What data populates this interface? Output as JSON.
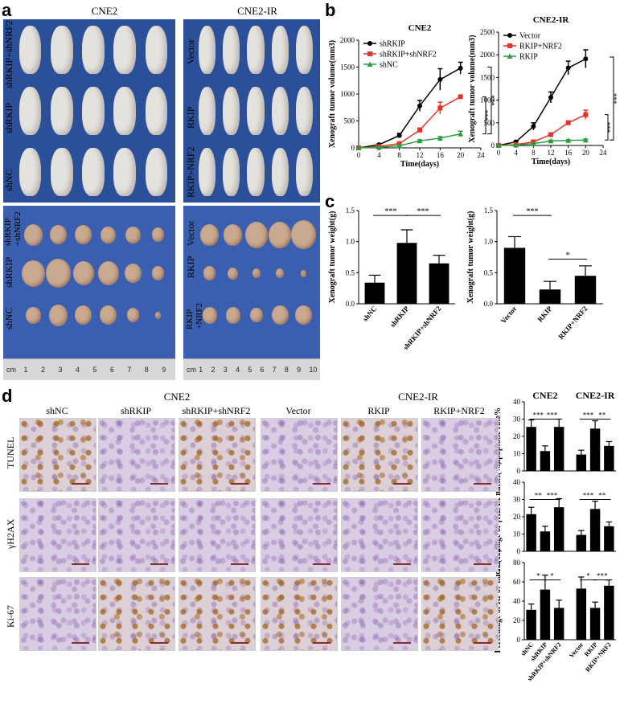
{
  "panels": {
    "a": {
      "label": "a",
      "left_title": "CNE2",
      "right_title": "CNE2-IR",
      "left_rows": [
        "shRKIP+shNRF2",
        "shRKIP",
        "shNC"
      ],
      "right_rows": [
        "Vector",
        "RKIP",
        "RKIP+NRF2"
      ],
      "left_tumor_rows": [
        "shRKIP\n+shNRF2",
        "shRKIP",
        "shNC"
      ],
      "right_tumor_rows": [
        "Vector",
        "RKIP",
        "RKIP\n+NRF2"
      ],
      "ruler_left": [
        "cm",
        "1",
        "2",
        "3",
        "4",
        "5",
        "6",
        "7",
        "8",
        "9"
      ],
      "ruler_right": [
        "cm",
        "1",
        "2",
        "3",
        "4",
        "5",
        "6",
        "7",
        "8",
        "9",
        "10"
      ]
    },
    "b": {
      "label": "b"
    },
    "c": {
      "label": "c"
    },
    "d": {
      "label": "d",
      "group1": "CNE2",
      "group2": "CNE2-IR",
      "columns": [
        "shNC",
        "shRKIP",
        "shRKIP+shNRF2",
        "Vector",
        "RKIP",
        "RKIP+NRF2"
      ],
      "rows": [
        "TUNEL",
        "γH2AX",
        "Ki-67"
      ]
    }
  },
  "chart_data": [
    {
      "id": "b-left",
      "type": "line",
      "title": "CNE2",
      "xlabel": "Time(days)",
      "ylabel": "Xenograft tumor volume(mm3)",
      "xlim": [
        0,
        24
      ],
      "ylim": [
        0,
        2000
      ],
      "xticks": [
        0,
        4,
        8,
        12,
        16,
        20,
        24
      ],
      "yticks": [
        0,
        500,
        1000,
        1500,
        2000
      ],
      "x": [
        0,
        4,
        8,
        12,
        16,
        20
      ],
      "series": [
        {
          "name": "shRKIP",
          "color": "#000000",
          "marker": "circle",
          "values": [
            0,
            60,
            230,
            780,
            1270,
            1480
          ],
          "errors": [
            0,
            15,
            40,
            100,
            200,
            110
          ]
        },
        {
          "name": "shRKIP+shNRF2",
          "color": "#e8332a",
          "marker": "square",
          "values": [
            0,
            25,
            80,
            330,
            740,
            950
          ],
          "errors": [
            0,
            10,
            20,
            40,
            110,
            30
          ]
        },
        {
          "name": "shNC",
          "color": "#2a9d3c",
          "marker": "triangle",
          "values": [
            0,
            10,
            40,
            130,
            180,
            260
          ],
          "errors": [
            0,
            5,
            10,
            20,
            30,
            50
          ]
        }
      ],
      "annotations": [
        "***",
        "***"
      ]
    },
    {
      "id": "b-right",
      "type": "line",
      "title": "CNE2-IR",
      "xlabel": "Time(days)",
      "ylabel": "Xenograft tumor volume(mm3)",
      "xlim": [
        0,
        24
      ],
      "ylim": [
        0,
        2500
      ],
      "xticks": [
        0,
        4,
        8,
        12,
        16,
        20,
        24
      ],
      "yticks": [
        0,
        500,
        1000,
        1500,
        2000,
        2500
      ],
      "x": [
        0,
        4,
        8,
        12,
        16,
        20
      ],
      "series": [
        {
          "name": "Vector",
          "color": "#000000",
          "marker": "circle",
          "values": [
            0,
            80,
            420,
            1060,
            1710,
            1910
          ],
          "errors": [
            0,
            20,
            80,
            120,
            150,
            200
          ]
        },
        {
          "name": "RKIP+NRF2",
          "color": "#e8332a",
          "marker": "square",
          "values": [
            0,
            20,
            80,
            240,
            500,
            680
          ],
          "errors": [
            0,
            10,
            20,
            30,
            40,
            100
          ]
        },
        {
          "name": "RKIP",
          "color": "#2a9d3c",
          "marker": "triangle",
          "values": [
            0,
            10,
            40,
            100,
            110,
            120
          ],
          "errors": [
            0,
            5,
            10,
            15,
            15,
            20
          ]
        }
      ],
      "annotations": [
        "***",
        "***"
      ]
    },
    {
      "id": "c-left",
      "type": "bar",
      "ylabel": "Xenograft tumor weight(g)",
      "ylim": [
        0,
        1.5
      ],
      "yticks": [
        "0.0",
        "0.5",
        "1.0",
        "1.5"
      ],
      "categories": [
        "shNC",
        "shRKIP",
        "shRKIP+shNRF2"
      ],
      "values": [
        0.34,
        0.98,
        0.65
      ],
      "errors": [
        0.12,
        0.21,
        0.13
      ],
      "annotations": [
        "***",
        "***"
      ]
    },
    {
      "id": "c-right",
      "type": "bar",
      "ylabel": "Xenograft tumor weight(g)",
      "ylim": [
        0,
        1.5
      ],
      "yticks": [
        "0.0",
        "0.5",
        "1.0",
        "1.5"
      ],
      "categories": [
        "Vector",
        "RKIP",
        "RKIP+NRF2"
      ],
      "values": [
        0.9,
        0.23,
        0.45
      ],
      "errors": [
        0.18,
        0.13,
        0.16
      ],
      "annotations": [
        "***",
        "*"
      ]
    },
    {
      "id": "d-apoptotic",
      "type": "bar",
      "ylabel": "Apoptotic rate%",
      "ylim": [
        0,
        40
      ],
      "yticks": [
        "0",
        "10",
        "20",
        "30",
        "40"
      ],
      "group_titles": [
        "CNE2",
        "CNE2-IR"
      ],
      "categories": [
        "shNC",
        "shRKIP",
        "shRKIP+shNRF2",
        "Vector",
        "RKIP",
        "RKIP+NRF2"
      ],
      "values": [
        25.5,
        11.5,
        25.5,
        9.5,
        24.5,
        14.5
      ],
      "errors": [
        4,
        3,
        4.5,
        2.5,
        4.5,
        2.5
      ],
      "annotations": [
        "***",
        "***",
        "***",
        "**"
      ]
    },
    {
      "id": "d-h2ax",
      "type": "bar",
      "ylabel": "Percentage of γH2AX nuclei(%)",
      "ylim": [
        0,
        40
      ],
      "yticks": [
        "0",
        "10",
        "20",
        "30",
        "40"
      ],
      "categories": [
        "shNC",
        "shRKIP",
        "shRKIP+shNRF2",
        "Vector",
        "RKIP",
        "RKIP+NRF2"
      ],
      "values": [
        21.5,
        11.5,
        25.5,
        9.5,
        24.5,
        14.5
      ],
      "errors": [
        4,
        3,
        5,
        2.5,
        4.5,
        2.5
      ],
      "annotations": [
        "**",
        "***",
        "***",
        "**"
      ]
    },
    {
      "id": "d-ki67",
      "type": "bar",
      "ylabel": "Percentage of Ki-67 nuclei(%)",
      "ylim": [
        0,
        80
      ],
      "yticks": [
        "0",
        "20",
        "40",
        "60",
        "80"
      ],
      "categories": [
        "shNC",
        "shRKIP",
        "shRKIP+shNRF2",
        "Vector",
        "RKIP",
        "RKIP+NRF2"
      ],
      "values": [
        31,
        52,
        33,
        53,
        33,
        56
      ],
      "errors": [
        6,
        15,
        8,
        12,
        6,
        6
      ],
      "annotations": [
        "*",
        "*",
        "*",
        "***"
      ]
    }
  ]
}
